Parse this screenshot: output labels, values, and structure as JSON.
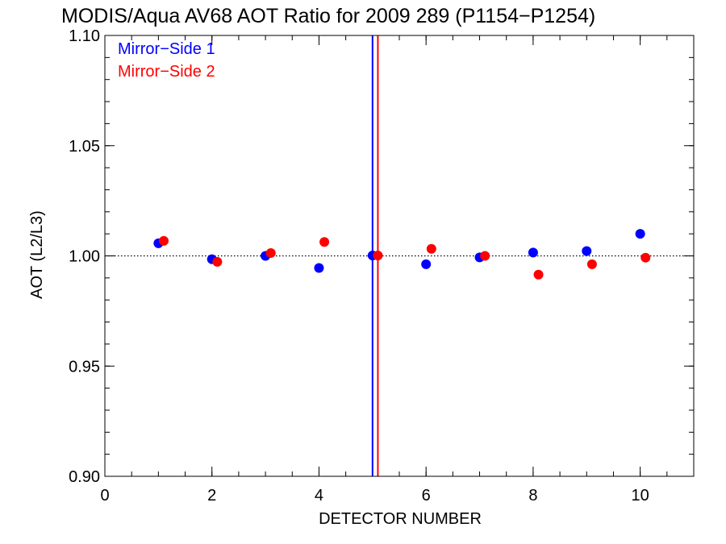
{
  "chart_data": {
    "type": "scatter",
    "title": "MODIS/Aqua AV68 AOT Ratio for 2009 289 (P1154−P1254)",
    "xlabel": "DETECTOR NUMBER",
    "ylabel": "AOT (L2/L3)",
    "xlim": [
      0,
      11
    ],
    "ylim": [
      0.9,
      1.1
    ],
    "x_ticks": [
      0,
      2,
      4,
      6,
      8,
      10
    ],
    "x_tick_labels": [
      "0",
      "2",
      "4",
      "6",
      "8",
      "10"
    ],
    "y_ticks": [
      0.9,
      0.95,
      1.0,
      1.05,
      1.1
    ],
    "y_tick_labels": [
      "0.90",
      "0.95",
      "1.00",
      "1.05",
      "1.10"
    ],
    "x_minor_step": 0.5,
    "y_minor_step": 0.01,
    "grid": false,
    "legend_position": "top-left",
    "reference_line_y": 1.0,
    "series": [
      {
        "name": "Mirror−Side 1",
        "color": "#0000ff",
        "x": [
          1,
          2,
          3,
          4,
          5,
          6,
          7,
          8,
          9,
          10
        ],
        "y": [
          1.0057,
          0.9985,
          1.0,
          0.9945,
          1.0002,
          0.9962,
          0.9993,
          1.0015,
          1.0022,
          1.01
        ],
        "vline_x": 5.0
      },
      {
        "name": "Mirror−Side 2",
        "color": "#ff0000",
        "x": [
          1.1,
          2.1,
          3.1,
          4.1,
          5.1,
          6.1,
          7.1,
          8.1,
          9.1,
          10.1
        ],
        "y": [
          1.0068,
          0.9973,
          1.0013,
          1.0063,
          1.0002,
          1.0032,
          1.0,
          0.9915,
          0.9962,
          0.9992
        ],
        "vline_x": 5.1
      }
    ]
  }
}
